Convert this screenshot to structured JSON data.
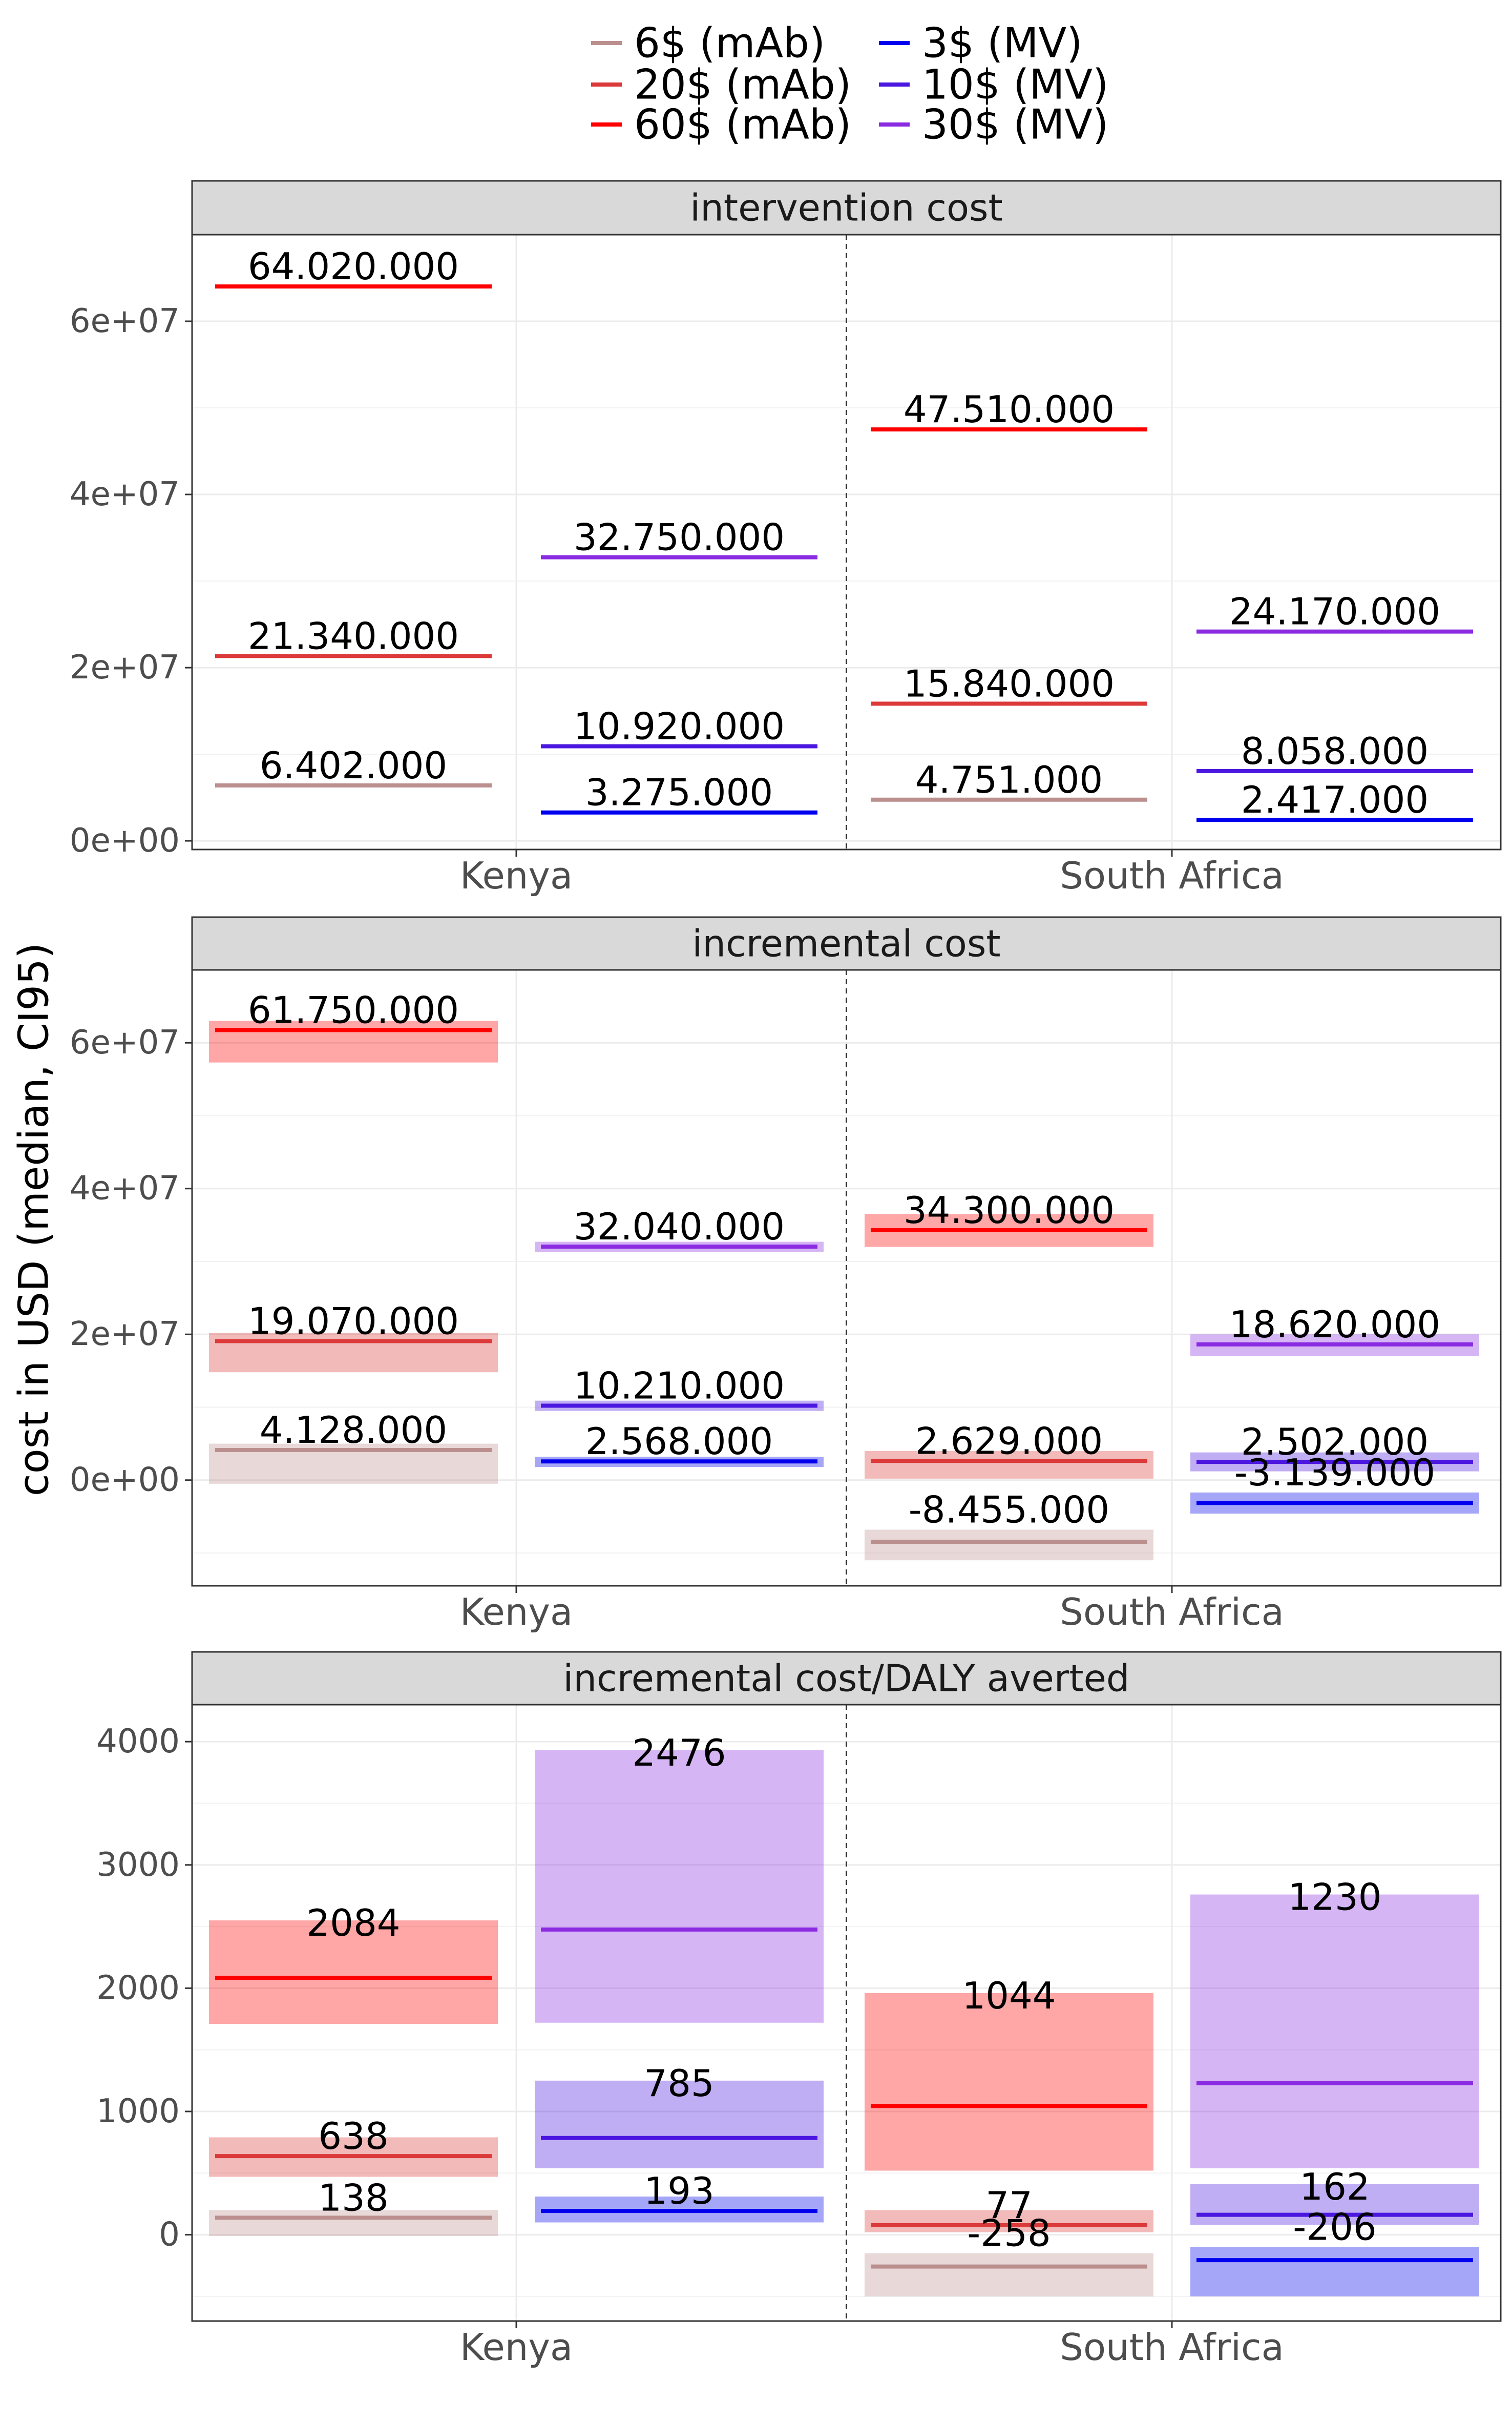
{
  "ylabel": "cost in USD (median, CI95)",
  "legend": {
    "position": "top",
    "entries": [
      {
        "label": "6$ (mAb)",
        "color": "#BC8F8F",
        "column": 0
      },
      {
        "label": "20$ (mAb)",
        "color": "#DC3A3A",
        "column": 0
      },
      {
        "label": "60$ (mAb)",
        "color": "#FF0000",
        "column": 0
      },
      {
        "label": "3$ (MV)",
        "color": "#0000EE",
        "column": 1
      },
      {
        "label": "10$ (MV)",
        "color": "#4B17E0",
        "column": 1
      },
      {
        "label": "30$ (MV)",
        "color": "#8A2BE2",
        "column": 1
      }
    ]
  },
  "chart_data": [
    {
      "type": "crossbar",
      "title": "intervention cost",
      "categories": [
        "Kenya",
        "South Africa"
      ],
      "ylim": [
        -1000000,
        70000000
      ],
      "yticks": [
        0,
        20000000,
        40000000,
        60000000
      ],
      "ytick_labels": [
        "0e+00",
        "2e+07",
        "4e+07",
        "6e+07"
      ],
      "points": [
        {
          "category": "Kenya",
          "group": "mAb",
          "series": "6$ (mAb)",
          "median": 6402000,
          "label": "6.402.000"
        },
        {
          "category": "Kenya",
          "group": "mAb",
          "series": "20$ (mAb)",
          "median": 21340000,
          "label": "21.340.000"
        },
        {
          "category": "Kenya",
          "group": "mAb",
          "series": "60$ (mAb)",
          "median": 64020000,
          "label": "64.020.000"
        },
        {
          "category": "Kenya",
          "group": "MV",
          "series": "3$ (MV)",
          "median": 3275000,
          "label": "3.275.000"
        },
        {
          "category": "Kenya",
          "group": "MV",
          "series": "10$ (MV)",
          "median": 10920000,
          "label": "10.920.000"
        },
        {
          "category": "Kenya",
          "group": "MV",
          "series": "30$ (MV)",
          "median": 32750000,
          "label": "32.750.000"
        },
        {
          "category": "South Africa",
          "group": "mAb",
          "series": "6$ (mAb)",
          "median": 4751000,
          "label": "4.751.000"
        },
        {
          "category": "South Africa",
          "group": "mAb",
          "series": "20$ (mAb)",
          "median": 15840000,
          "label": "15.840.000"
        },
        {
          "category": "South Africa",
          "group": "mAb",
          "series": "60$ (mAb)",
          "median": 47510000,
          "label": "47.510.000"
        },
        {
          "category": "South Africa",
          "group": "MV",
          "series": "3$ (MV)",
          "median": 2417000,
          "label": "2.417.000"
        },
        {
          "category": "South Africa",
          "group": "MV",
          "series": "10$ (MV)",
          "median": 8058000,
          "label": "8.058.000"
        },
        {
          "category": "South Africa",
          "group": "MV",
          "series": "30$ (MV)",
          "median": 24170000,
          "label": "24.170.000"
        }
      ]
    },
    {
      "type": "crossbar",
      "title": "incremental cost",
      "categories": [
        "Kenya",
        "South Africa"
      ],
      "ylim": [
        -14500000,
        70000000
      ],
      "yticks": [
        0,
        20000000,
        40000000,
        60000000
      ],
      "ytick_labels": [
        "0e+00",
        "2e+07",
        "4e+07",
        "6e+07"
      ],
      "points": [
        {
          "category": "Kenya",
          "group": "mAb",
          "series": "6$ (mAb)",
          "median": 4128000,
          "lo": -500000,
          "hi": 5000000,
          "label": "4.128.000"
        },
        {
          "category": "Kenya",
          "group": "mAb",
          "series": "20$ (mAb)",
          "median": 19070000,
          "lo": 14800000,
          "hi": 20200000,
          "label": "19.070.000"
        },
        {
          "category": "Kenya",
          "group": "mAb",
          "series": "60$ (mAb)",
          "median": 61750000,
          "lo": 57300000,
          "hi": 63000000,
          "label": "61.750.000"
        },
        {
          "category": "Kenya",
          "group": "MV",
          "series": "3$ (MV)",
          "median": 2568000,
          "lo": 1800000,
          "hi": 3200000,
          "label": "2.568.000"
        },
        {
          "category": "Kenya",
          "group": "MV",
          "series": "10$ (MV)",
          "median": 10210000,
          "lo": 9500000,
          "hi": 10900000,
          "label": "10.210.000"
        },
        {
          "category": "Kenya",
          "group": "MV",
          "series": "30$ (MV)",
          "median": 32040000,
          "lo": 31300000,
          "hi": 32700000,
          "label": "32.040.000"
        },
        {
          "category": "South Africa",
          "group": "mAb",
          "series": "6$ (mAb)",
          "median": -8455000,
          "lo": -11000000,
          "hi": -6800000,
          "label": "-8.455.000"
        },
        {
          "category": "South Africa",
          "group": "mAb",
          "series": "20$ (mAb)",
          "median": 2629000,
          "lo": 200000,
          "hi": 4000000,
          "label": "2.629.000"
        },
        {
          "category": "South Africa",
          "group": "mAb",
          "series": "60$ (mAb)",
          "median": 34300000,
          "lo": 32000000,
          "hi": 36500000,
          "label": "34.300.000"
        },
        {
          "category": "South Africa",
          "group": "MV",
          "series": "3$ (MV)",
          "median": -3139000,
          "lo": -4600000,
          "hi": -1700000,
          "label": "-3.139.000"
        },
        {
          "category": "South Africa",
          "group": "MV",
          "series": "10$ (MV)",
          "median": 2502000,
          "lo": 1200000,
          "hi": 3800000,
          "label": "2.502.000"
        },
        {
          "category": "South Africa",
          "group": "MV",
          "series": "30$ (MV)",
          "median": 18620000,
          "lo": 17000000,
          "hi": 20000000,
          "label": "18.620.000"
        }
      ]
    },
    {
      "type": "crossbar",
      "title": "incremental cost/DALY averted",
      "categories": [
        "Kenya",
        "South Africa"
      ],
      "ylim": [
        -700,
        4300
      ],
      "yticks": [
        0,
        1000,
        2000,
        3000,
        4000
      ],
      "ytick_labels": [
        "0",
        "1000",
        "2000",
        "3000",
        "4000"
      ],
      "points": [
        {
          "category": "Kenya",
          "group": "mAb",
          "series": "6$ (mAb)",
          "median": 138,
          "lo": -10,
          "hi": 200,
          "label": "138"
        },
        {
          "category": "Kenya",
          "group": "mAb",
          "series": "20$ (mAb)",
          "median": 638,
          "lo": 470,
          "hi": 790,
          "label": "638"
        },
        {
          "category": "Kenya",
          "group": "mAb",
          "series": "60$ (mAb)",
          "median": 2084,
          "lo": 1710,
          "hi": 2550,
          "label": "2084"
        },
        {
          "category": "Kenya",
          "group": "MV",
          "series": "3$ (MV)",
          "median": 193,
          "lo": 100,
          "hi": 310,
          "label": "193"
        },
        {
          "category": "Kenya",
          "group": "MV",
          "series": "10$ (MV)",
          "median": 785,
          "lo": 540,
          "hi": 1250,
          "label": "785"
        },
        {
          "category": "Kenya",
          "group": "MV",
          "series": "30$ (MV)",
          "median": 2476,
          "lo": 1720,
          "hi": 3930,
          "label": "2476"
        },
        {
          "category": "South Africa",
          "group": "mAb",
          "series": "6$ (mAb)",
          "median": -258,
          "lo": -500,
          "hi": -150,
          "label": "-258"
        },
        {
          "category": "South Africa",
          "group": "mAb",
          "series": "20$ (mAb)",
          "median": 77,
          "lo": 20,
          "hi": 200,
          "label": "77"
        },
        {
          "category": "South Africa",
          "group": "mAb",
          "series": "60$ (mAb)",
          "median": 1044,
          "lo": 520,
          "hi": 1960,
          "label": "1044"
        },
        {
          "category": "South Africa",
          "group": "MV",
          "series": "3$ (MV)",
          "median": -206,
          "lo": -500,
          "hi": -100,
          "label": "-206"
        },
        {
          "category": "South Africa",
          "group": "MV",
          "series": "10$ (MV)",
          "median": 162,
          "lo": 80,
          "hi": 410,
          "label": "162"
        },
        {
          "category": "South Africa",
          "group": "MV",
          "series": "30$ (MV)",
          "median": 1230,
          "lo": 540,
          "hi": 2760,
          "label": "1230"
        }
      ]
    }
  ]
}
